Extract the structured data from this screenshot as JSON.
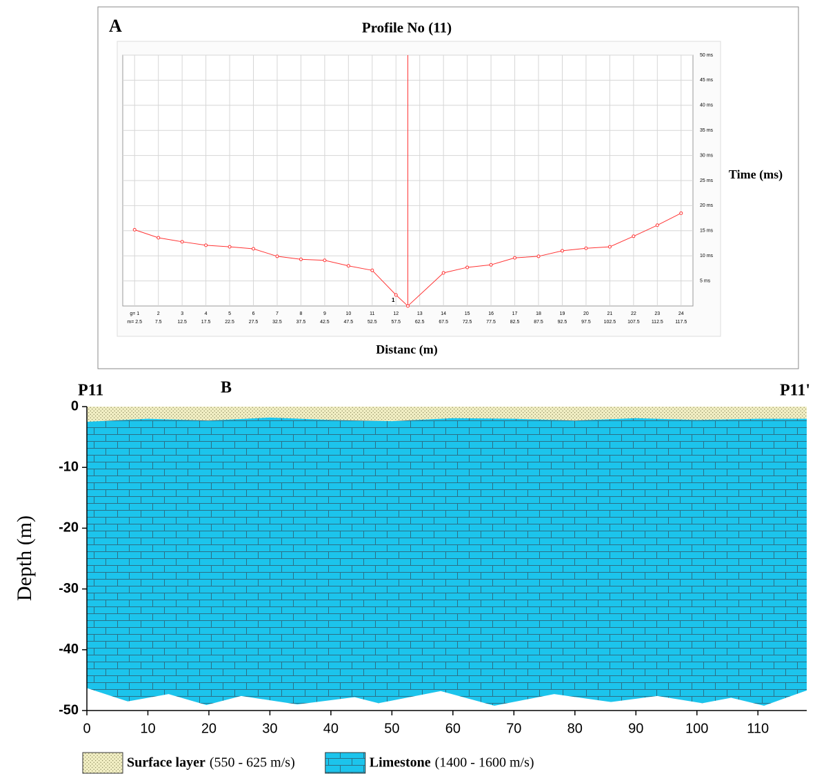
{
  "chart_data": [
    {
      "type": "line",
      "panel_label": "A",
      "title": "Profile No (11)",
      "y_label": "Time (ms)",
      "x_label": "Distanc (m)",
      "x": [
        2.5,
        7.5,
        12.5,
        17.5,
        22.5,
        27.5,
        32.5,
        37.5,
        42.5,
        47.5,
        52.5,
        57.5,
        60,
        67.5,
        72.5,
        77.5,
        82.5,
        87.5,
        92.5,
        97.5,
        102.5,
        107.5,
        112.5,
        117.5
      ],
      "series": [
        {
          "color": "#ff3333",
          "values": [
            15.2,
            13.6,
            12.8,
            12.1,
            11.8,
            11.4,
            9.9,
            9.3,
            9.1,
            8.0,
            7.1,
            2.2,
            0,
            6.6,
            7.7,
            8.2,
            9.6,
            9.9,
            11.0,
            11.5,
            11.8,
            13.9,
            16.1,
            18.5
          ]
        }
      ],
      "xlim": [
        0,
        120
      ],
      "xticks": [
        {
          "value": 2.5,
          "label": "m= 2.5"
        },
        7.5,
        12.5,
        17.5,
        22.5,
        27.5,
        32.5,
        37.5,
        42.5,
        47.5,
        52.5,
        57.5,
        62.5,
        67.5,
        72.5,
        77.5,
        82.5,
        87.5,
        92.5,
        97.5,
        102.5,
        107.5,
        112.5,
        117.5
      ],
      "geophone_labels": [
        "g= 1",
        "2",
        "3",
        "4",
        "5",
        "6",
        "7",
        "8",
        "9",
        "10",
        "11",
        "12",
        "13",
        "14",
        "15",
        "16",
        "17",
        "18",
        "19",
        "20",
        "21",
        "22",
        "23",
        "24"
      ],
      "ylim": [
        0,
        50
      ],
      "yticks": [
        {
          "value": 5,
          "label": "5 ms"
        },
        {
          "value": 10,
          "label": "10 ms"
        },
        {
          "value": 15,
          "label": "15 ms"
        },
        {
          "value": 20,
          "label": "20 ms"
        },
        {
          "value": 25,
          "label": "25 ms"
        },
        {
          "value": 30,
          "label": "30 ms"
        },
        {
          "value": 35,
          "label": "35 ms"
        },
        {
          "value": 40,
          "label": "40 ms"
        },
        {
          "value": 45,
          "label": "45 ms"
        },
        {
          "value": 50,
          "label": "50 ms"
        }
      ],
      "grid": true,
      "shot_position": 60,
      "annotation": "1"
    },
    {
      "type": "section",
      "panel_label": "B",
      "start_label": "P11",
      "end_label": "P11'",
      "y_label": "Depth (m)",
      "xlim": [
        0,
        118
      ],
      "xticks": [
        0,
        10,
        20,
        30,
        40,
        50,
        60,
        70,
        80,
        90,
        100,
        110
      ],
      "ylim": [
        -50,
        0
      ],
      "yticks": [
        0,
        -10,
        -20,
        -30,
        -40,
        -50
      ],
      "series": [
        {
          "name": "Surface layer",
          "velocity": "(550 - 625 m/s)",
          "color": "#f2efc4",
          "x": [
            0,
            10,
            20,
            30,
            40,
            50,
            60,
            70,
            80,
            90,
            100,
            110,
            118
          ],
          "values": [
            -2.5,
            -2.0,
            -2.3,
            -1.8,
            -2.2,
            -2.4,
            -1.9,
            -2.0,
            -2.3,
            -1.9,
            -2.2,
            -2.0,
            -2.0
          ]
        },
        {
          "name": "Limestone",
          "velocity": "(1400 - 1600 m/s)",
          "color": "#1cc4ec",
          "x": [
            0,
            6.7,
            13.4,
            19.6,
            25.3,
            34.5,
            43.9,
            47.8,
            58,
            66.8,
            76.6,
            85.9,
            93.5,
            100.9,
            105.6,
            111,
            118
          ],
          "values": [
            -46.3,
            -48.5,
            -47.3,
            -49.1,
            -47.6,
            -49.0,
            -47.8,
            -48.8,
            -46.8,
            -49.2,
            -47.3,
            -48.6,
            -47.6,
            -48.8,
            -47.9,
            -49.2,
            -46.7
          ]
        }
      ]
    }
  ]
}
